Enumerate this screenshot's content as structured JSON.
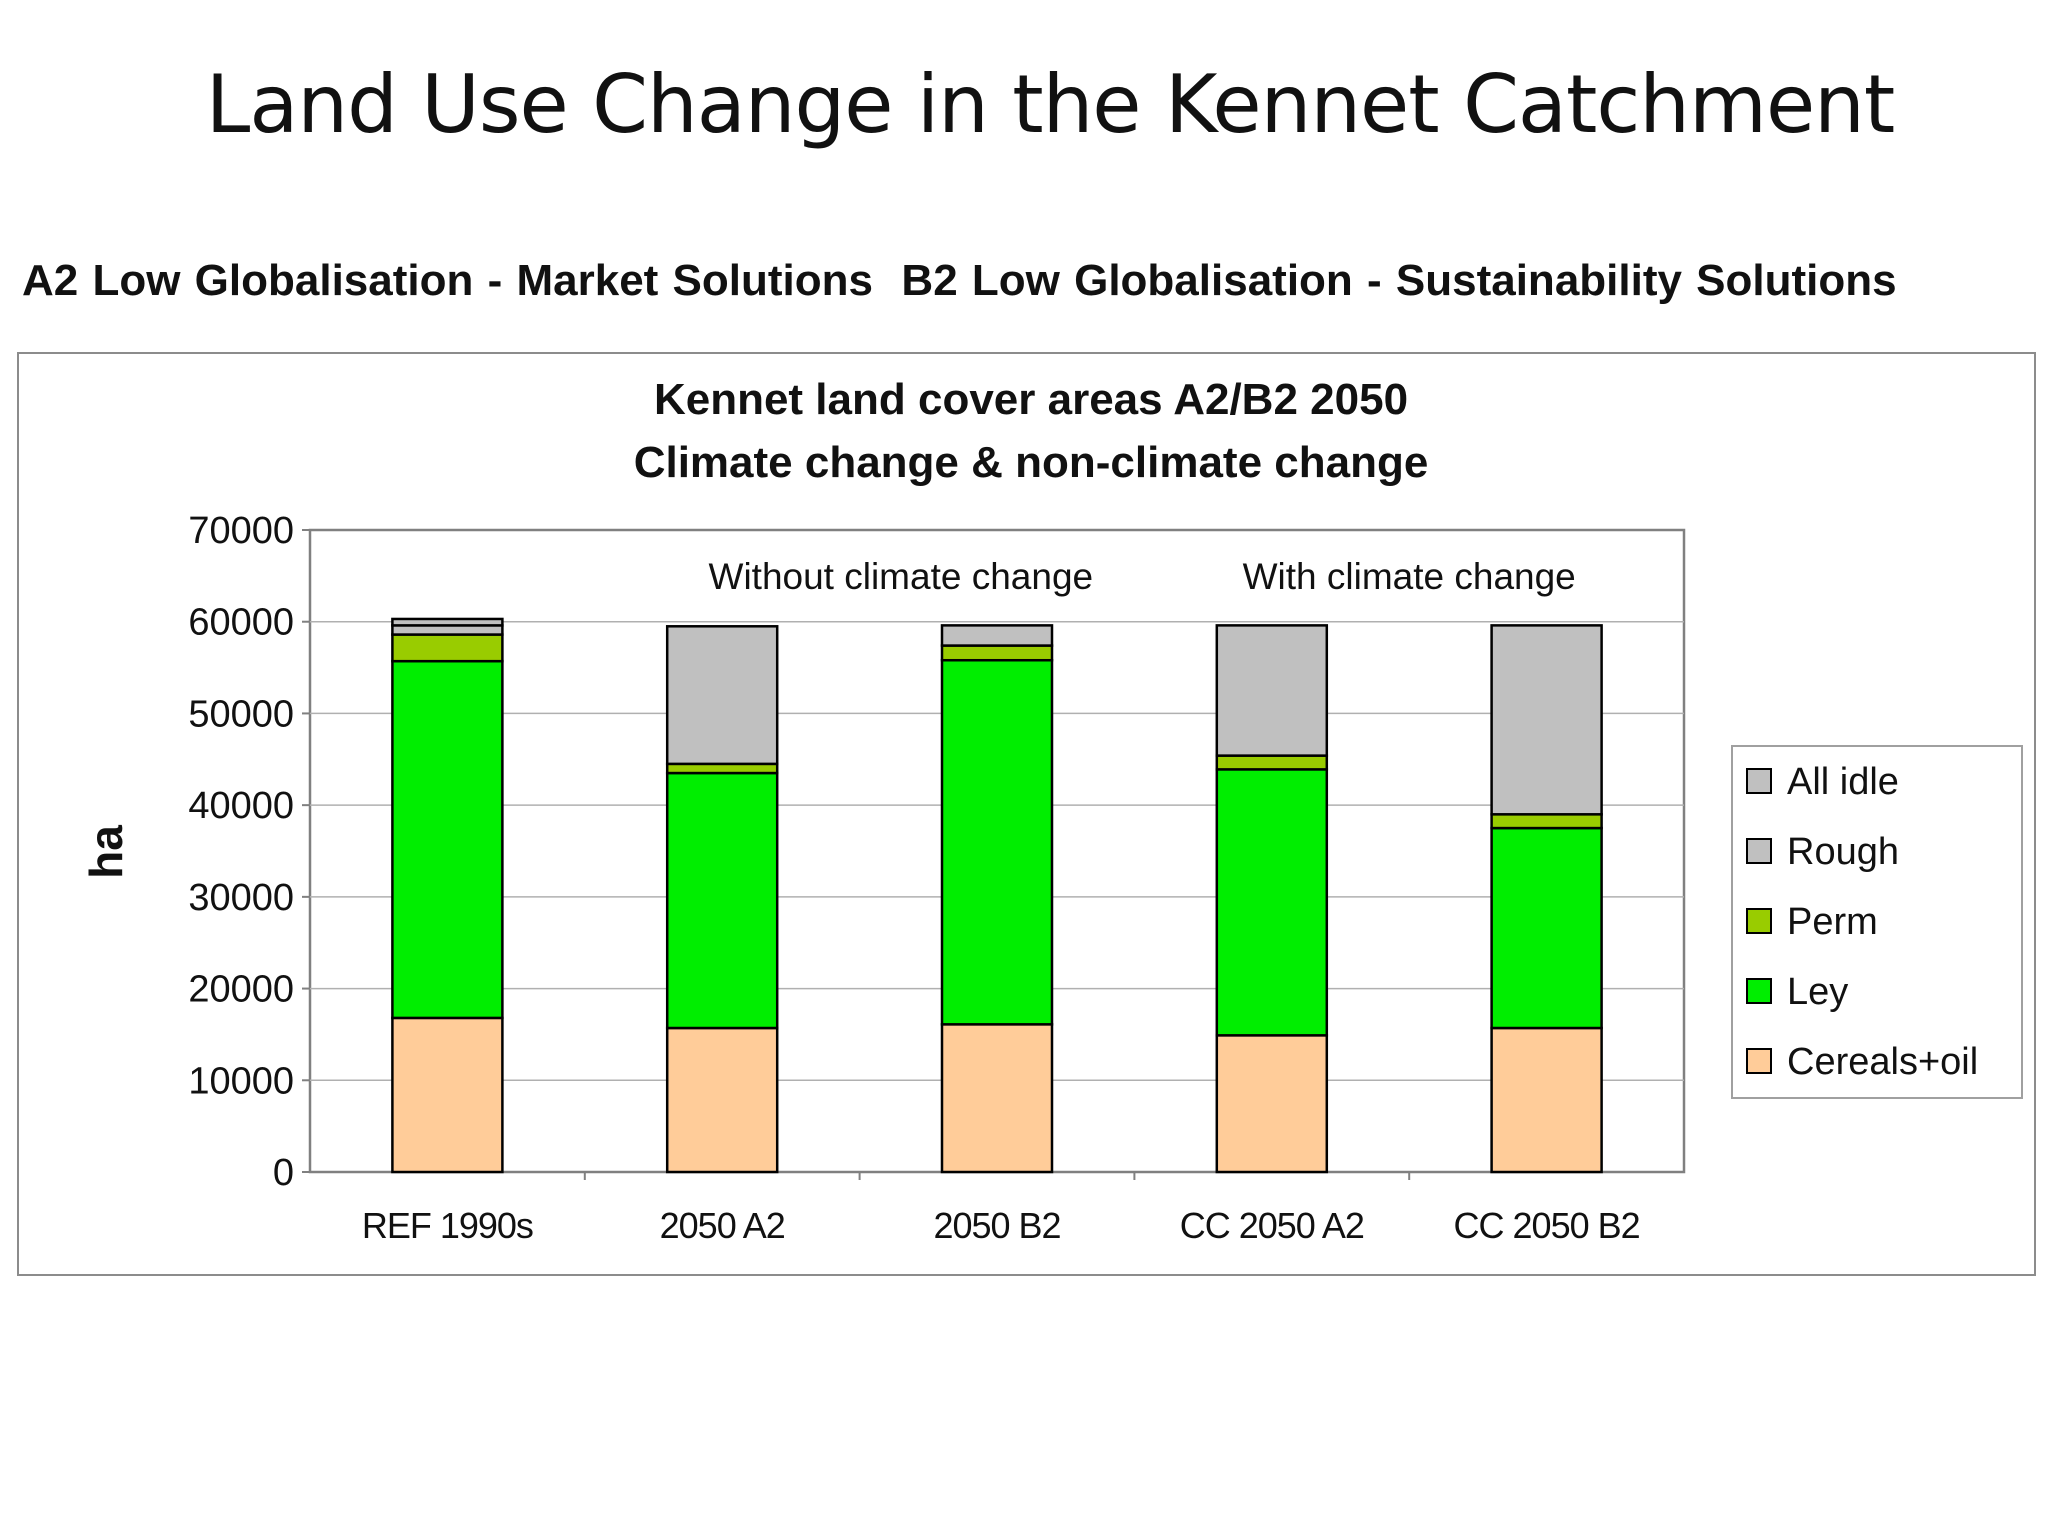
{
  "slide": {
    "title": "Land Use Change in the Kennet Catchment",
    "caption_a2": "A2 Low Globalisation - Market Solutions",
    "caption_b2": "B2 Low Globalisation - Sustainability Solutions"
  },
  "chart_data": {
    "type": "bar",
    "stacked": true,
    "title": "Kennet land cover areas A2/B2 2050",
    "subtitle": "Climate change & non-climate change",
    "ylabel": "ha",
    "xlabel": "",
    "ylim": [
      0,
      70000
    ],
    "yticks": [
      0,
      10000,
      20000,
      30000,
      40000,
      50000,
      60000,
      70000
    ],
    "grid": true,
    "legend_position": "right",
    "categories": [
      "REF 1990s",
      "2050 A2",
      "2050 B2",
      "CC 2050 A2",
      "CC 2050 B2"
    ],
    "annotations": [
      "Without climate change",
      "With climate change"
    ],
    "series": [
      {
        "name": "Cereals+oil",
        "color": "#ffcc99",
        "values": [
          16800,
          15700,
          16100,
          14900,
          15700
        ]
      },
      {
        "name": "Ley",
        "color": "#00ee00",
        "values": [
          38900,
          27800,
          39700,
          29000,
          21800
        ]
      },
      {
        "name": "Perm",
        "color": "#99cc00",
        "values": [
          2900,
          1000,
          1600,
          1500,
          1500
        ]
      },
      {
        "name": "Rough",
        "color": "#c0c0c0",
        "values": [
          1000,
          15000,
          2200,
          14200,
          20600
        ]
      },
      {
        "name": "All idle",
        "color": "#c0c0c0",
        "values": [
          700,
          0,
          0,
          0,
          0
        ]
      }
    ]
  }
}
